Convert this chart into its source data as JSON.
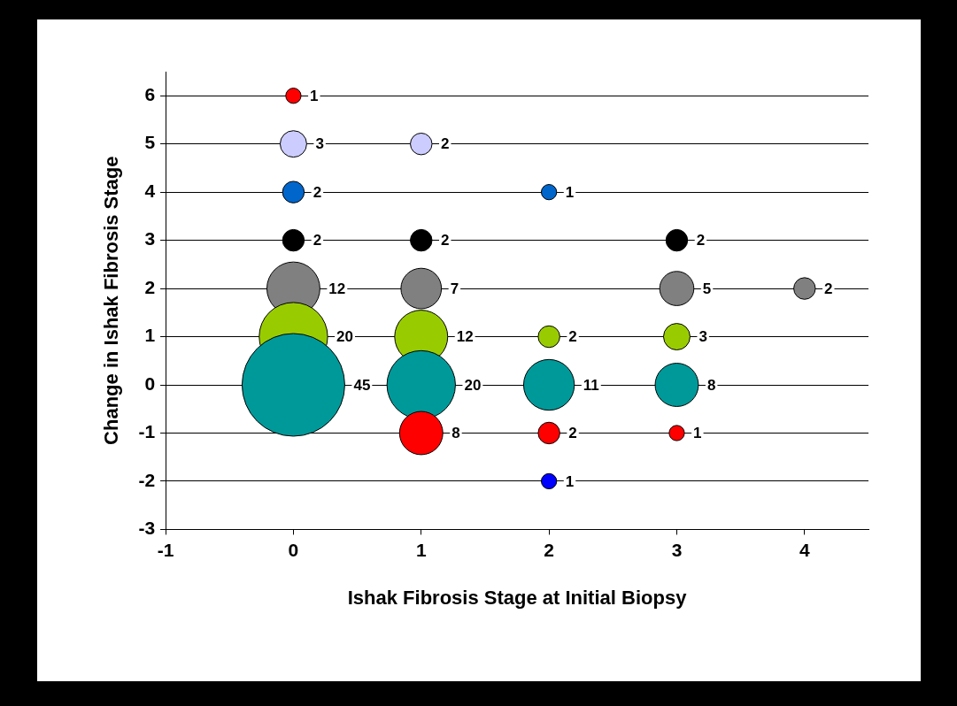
{
  "chart_data": {
    "type": "bubble",
    "xlabel": "Ishak Fibrosis Stage at Initial Biopsy",
    "ylabel": "Change in Ishak Fibrosis Stage",
    "x": [
      0,
      0,
      1,
      0,
      2,
      0,
      1,
      3,
      0,
      1,
      3,
      4,
      0,
      1,
      2,
      3,
      0,
      1,
      2,
      3,
      1,
      2,
      3,
      2
    ],
    "values": [
      6,
      5,
      5,
      4,
      4,
      3,
      3,
      3,
      2,
      2,
      2,
      2,
      1,
      1,
      1,
      1,
      0,
      0,
      0,
      0,
      -1,
      -1,
      -1,
      -2
    ],
    "sizes": [
      1,
      3,
      2,
      2,
      1,
      2,
      2,
      2,
      12,
      7,
      5,
      2,
      20,
      12,
      2,
      3,
      45,
      20,
      11,
      8,
      8,
      2,
      1,
      1
    ],
    "value_labels": [
      "1",
      "3",
      "2",
      "2",
      "1",
      "2",
      "2",
      "2",
      "12",
      "7",
      "5",
      "2",
      "20",
      "12",
      "2",
      "3",
      "45",
      "20",
      "11",
      "8",
      "8",
      "2",
      "1",
      "1"
    ],
    "colors": [
      "#ff0000",
      "#ccccff",
      "#ccccff",
      "#0066cc",
      "#0066cc",
      "#000000",
      "#000000",
      "#000000",
      "#808080",
      "#808080",
      "#808080",
      "#808080",
      "#99cc00",
      "#99cc00",
      "#99cc00",
      "#99cc00",
      "#009999",
      "#009999",
      "#009999",
      "#009999",
      "#ff0000",
      "#ff0000",
      "#ff0000",
      "#0000ff"
    ],
    "xlim": [
      -1,
      4.5
    ],
    "xticks": [
      -1,
      0,
      1,
      2,
      3,
      4
    ],
    "ylim": [
      -3,
      6.5
    ],
    "yticks": [
      -3,
      -2,
      -1,
      0,
      1,
      2,
      3,
      4,
      5,
      6
    ],
    "grid": "y",
    "legend": false
  }
}
